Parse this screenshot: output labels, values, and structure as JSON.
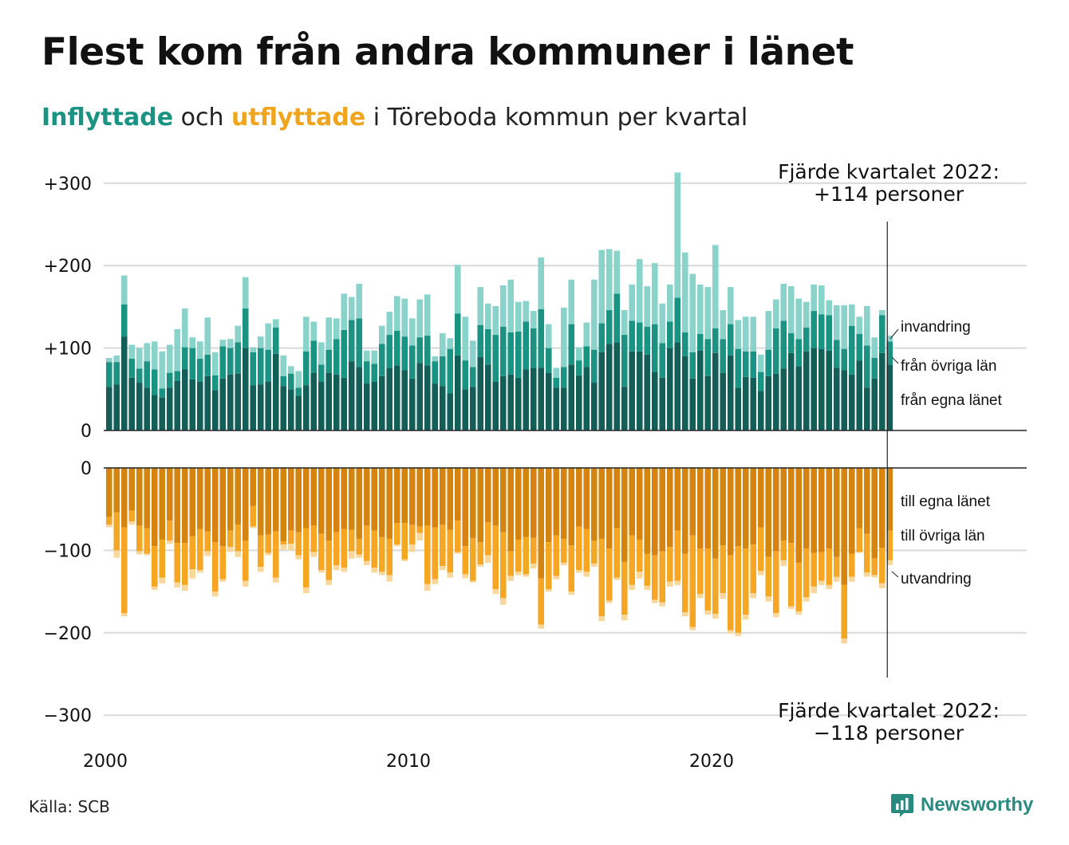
{
  "header": {
    "title": "Flest kom från andra kommuner i länet",
    "subtitle_in": "Inflyttade",
    "subtitle_mid": " och ",
    "subtitle_out": "utflyttade",
    "subtitle_rest": " i Töreboda kommun per kvartal"
  },
  "colors": {
    "in_dark": "#135f58",
    "in_mid": "#1a9383",
    "in_light": "#8ad3ca",
    "out_dark": "#d5840f",
    "out_mid": "#f5a623",
    "out_light": "#f9d79a",
    "grid": "#d9d9d9",
    "text": "#111111"
  },
  "chart_data": {
    "type": "bar",
    "stacked": true,
    "x_start_year": 2000,
    "x_end_year": 2022,
    "periods_per_year": 4,
    "x_ticks": [
      "2000",
      "2010",
      "2020"
    ],
    "y_ticks_top": [
      "+300",
      "+200",
      "+100",
      "0"
    ],
    "y_ticks_bottom": [
      "0",
      "−100",
      "−200",
      "−300"
    ],
    "ylim_top": [
      0,
      300
    ],
    "ylim_bottom": [
      -300,
      0
    ],
    "grid": true,
    "series_in": [
      {
        "name": "från egna länet",
        "values": [
          53,
          56,
          114,
          64,
          58,
          52,
          43,
          40,
          52,
          60,
          74,
          62,
          59,
          66,
          49,
          63,
          68,
          69,
          100,
          55,
          56,
          59,
          93,
          54,
          50,
          42,
          55,
          70,
          59,
          70,
          68,
          64,
          84,
          77,
          57,
          59,
          66,
          76,
          79,
          73,
          63,
          82,
          79,
          57,
          54,
          45,
          91,
          50,
          53,
          89,
          80,
          59,
          66,
          68,
          64,
          74,
          76,
          76,
          70,
          52,
          52,
          80,
          67,
          77,
          58,
          95,
          105,
          107,
          53,
          96,
          96,
          92,
          71,
          64,
          100,
          107,
          90,
          63,
          97,
          66,
          94,
          70,
          91,
          52,
          65,
          64,
          48,
          66,
          69,
          75,
          94,
          78,
          96,
          100,
          99,
          97,
          76,
          73,
          68,
          85,
          52,
          63,
          94,
          80
        ]
      },
      {
        "name": "från övriga län",
        "values": [
          30,
          27,
          39,
          23,
          17,
          32,
          31,
          11,
          18,
          12,
          27,
          38,
          28,
          26,
          18,
          39,
          32,
          38,
          48,
          40,
          44,
          39,
          32,
          12,
          19,
          10,
          41,
          39,
          21,
          28,
          43,
          58,
          50,
          59,
          27,
          22,
          39,
          40,
          42,
          41,
          40,
          31,
          36,
          27,
          36,
          54,
          51,
          35,
          24,
          39,
          43,
          57,
          60,
          51,
          56,
          58,
          48,
          71,
          30,
          12,
          25,
          49,
          18,
          25,
          40,
          35,
          41,
          59,
          63,
          37,
          35,
          34,
          58,
          42,
          32,
          54,
          29,
          32,
          20,
          45,
          30,
          41,
          38,
          47,
          31,
          32,
          23,
          32,
          55,
          58,
          24,
          33,
          29,
          45,
          42,
          43,
          34,
          26,
          59,
          32,
          51,
          25,
          46,
          28
        ]
      },
      {
        "name": "invandring",
        "values": [
          5,
          8,
          35,
          17,
          25,
          22,
          34,
          45,
          34,
          51,
          47,
          13,
          21,
          45,
          28,
          8,
          11,
          20,
          38,
          6,
          14,
          32,
          10,
          25,
          9,
          20,
          42,
          23,
          27,
          39,
          25,
          44,
          28,
          42,
          13,
          16,
          22,
          28,
          42,
          46,
          33,
          46,
          50,
          6,
          28,
          13,
          59,
          53,
          32,
          46,
          31,
          35,
          50,
          64,
          36,
          25,
          21,
          63,
          29,
          12,
          72,
          54,
          16,
          29,
          85,
          89,
          74,
          52,
          30,
          44,
          77,
          49,
          74,
          48,
          45,
          152,
          97,
          95,
          60,
          63,
          101,
          35,
          45,
          35,
          42,
          42,
          21,
          47,
          35,
          45,
          57,
          49,
          31,
          32,
          35,
          18,
          42,
          53,
          26,
          21,
          48,
          25,
          6,
          7
        ]
      }
    ],
    "series_out": [
      {
        "name": "till egna länet",
        "values": [
          -59,
          -54,
          -72,
          -52,
          -70,
          -73,
          -95,
          -87,
          -64,
          -91,
          -91,
          -83,
          -74,
          -77,
          -90,
          -95,
          -76,
          -69,
          -88,
          -46,
          -82,
          -81,
          -77,
          -89,
          -76,
          -78,
          -73,
          -70,
          -80,
          -88,
          -78,
          -74,
          -75,
          -86,
          -70,
          -76,
          -84,
          -86,
          -67,
          -67,
          -69,
          -71,
          -70,
          -72,
          -69,
          -75,
          -64,
          -95,
          -85,
          -90,
          -66,
          -70,
          -78,
          -101,
          -87,
          -84,
          -85,
          -134,
          -90,
          -82,
          -86,
          -94,
          -71,
          -74,
          -88,
          -86,
          -98,
          -73,
          -114,
          -82,
          -87,
          -104,
          -106,
          -101,
          -96,
          -76,
          -104,
          -82,
          -98,
          -98,
          -110,
          -94,
          -106,
          -95,
          -98,
          -93,
          -72,
          -108,
          -101,
          -88,
          -91,
          -115,
          -98,
          -103,
          -102,
          -98,
          -108,
          -142,
          -104,
          -73,
          -80,
          -110,
          -97,
          -76
        ]
      },
      {
        "name": "till övriga län",
        "values": [
          -10,
          -46,
          -104,
          -13,
          -31,
          -31,
          -49,
          -46,
          -24,
          -48,
          -51,
          -40,
          -50,
          -24,
          -60,
          -40,
          -20,
          -32,
          -49,
          -25,
          -38,
          -22,
          -56,
          -4,
          -16,
          -28,
          -72,
          -32,
          -44,
          -48,
          -40,
          -47,
          -26,
          -19,
          -43,
          -45,
          -42,
          -44,
          -26,
          -44,
          -24,
          -8,
          -71,
          -63,
          -50,
          -52,
          -38,
          -34,
          -52,
          -27,
          -40,
          -77,
          -80,
          -30,
          -39,
          -45,
          -31,
          -56,
          -57,
          -49,
          -29,
          -56,
          -53,
          -52,
          -28,
          -94,
          -63,
          -60,
          -64,
          -60,
          -39,
          -39,
          -54,
          -62,
          -42,
          -61,
          -71,
          -111,
          -55,
          -75,
          -67,
          -58,
          -91,
          -105,
          -80,
          -59,
          -53,
          -48,
          -75,
          -24,
          -77,
          -59,
          -59,
          -41,
          -35,
          -44,
          -24,
          -65,
          -28,
          -29,
          -47,
          -20,
          -43,
          -36
        ]
      },
      {
        "name": "utvandring",
        "values": [
          -3,
          -9,
          -4,
          -4,
          -4,
          -2,
          -4,
          -7,
          -4,
          -6,
          -7,
          -11,
          -3,
          -6,
          -6,
          -3,
          -6,
          -7,
          -7,
          -2,
          -6,
          -3,
          -6,
          -6,
          -8,
          -5,
          -7,
          -6,
          -3,
          -6,
          -6,
          -5,
          -9,
          -4,
          -5,
          -6,
          -4,
          -8,
          -2,
          -2,
          -9,
          -9,
          -8,
          -6,
          -5,
          -6,
          -2,
          -5,
          -2,
          -3,
          -9,
          -6,
          -8,
          -6,
          -4,
          -3,
          -6,
          -5,
          -3,
          -4,
          -3,
          -4,
          -3,
          -6,
          -4,
          -6,
          -3,
          -3,
          -7,
          -6,
          -8,
          -5,
          -4,
          -5,
          -6,
          -5,
          -5,
          -4,
          -5,
          -5,
          -6,
          -7,
          -4,
          -4,
          -6,
          -6,
          -5,
          -6,
          -5,
          -7,
          -3,
          -4,
          -5,
          -8,
          -5,
          -5,
          -6,
          -6,
          -6,
          -1,
          -5,
          -3,
          -6,
          -6
        ]
      }
    ],
    "annotation_top": [
      "Fjärde kvartalet 2022:",
      "+114 personer"
    ],
    "annotation_bottom": [
      "Fjärde kvartalet 2022:",
      "−118 personer"
    ],
    "legend_in": [
      "invandring",
      "från övriga län",
      "från egna länet"
    ],
    "legend_out": [
      "till egna länet",
      "till övriga län",
      "utvandring"
    ]
  },
  "footer": {
    "source": "Källa: SCB",
    "brand": "Newsworthy"
  }
}
